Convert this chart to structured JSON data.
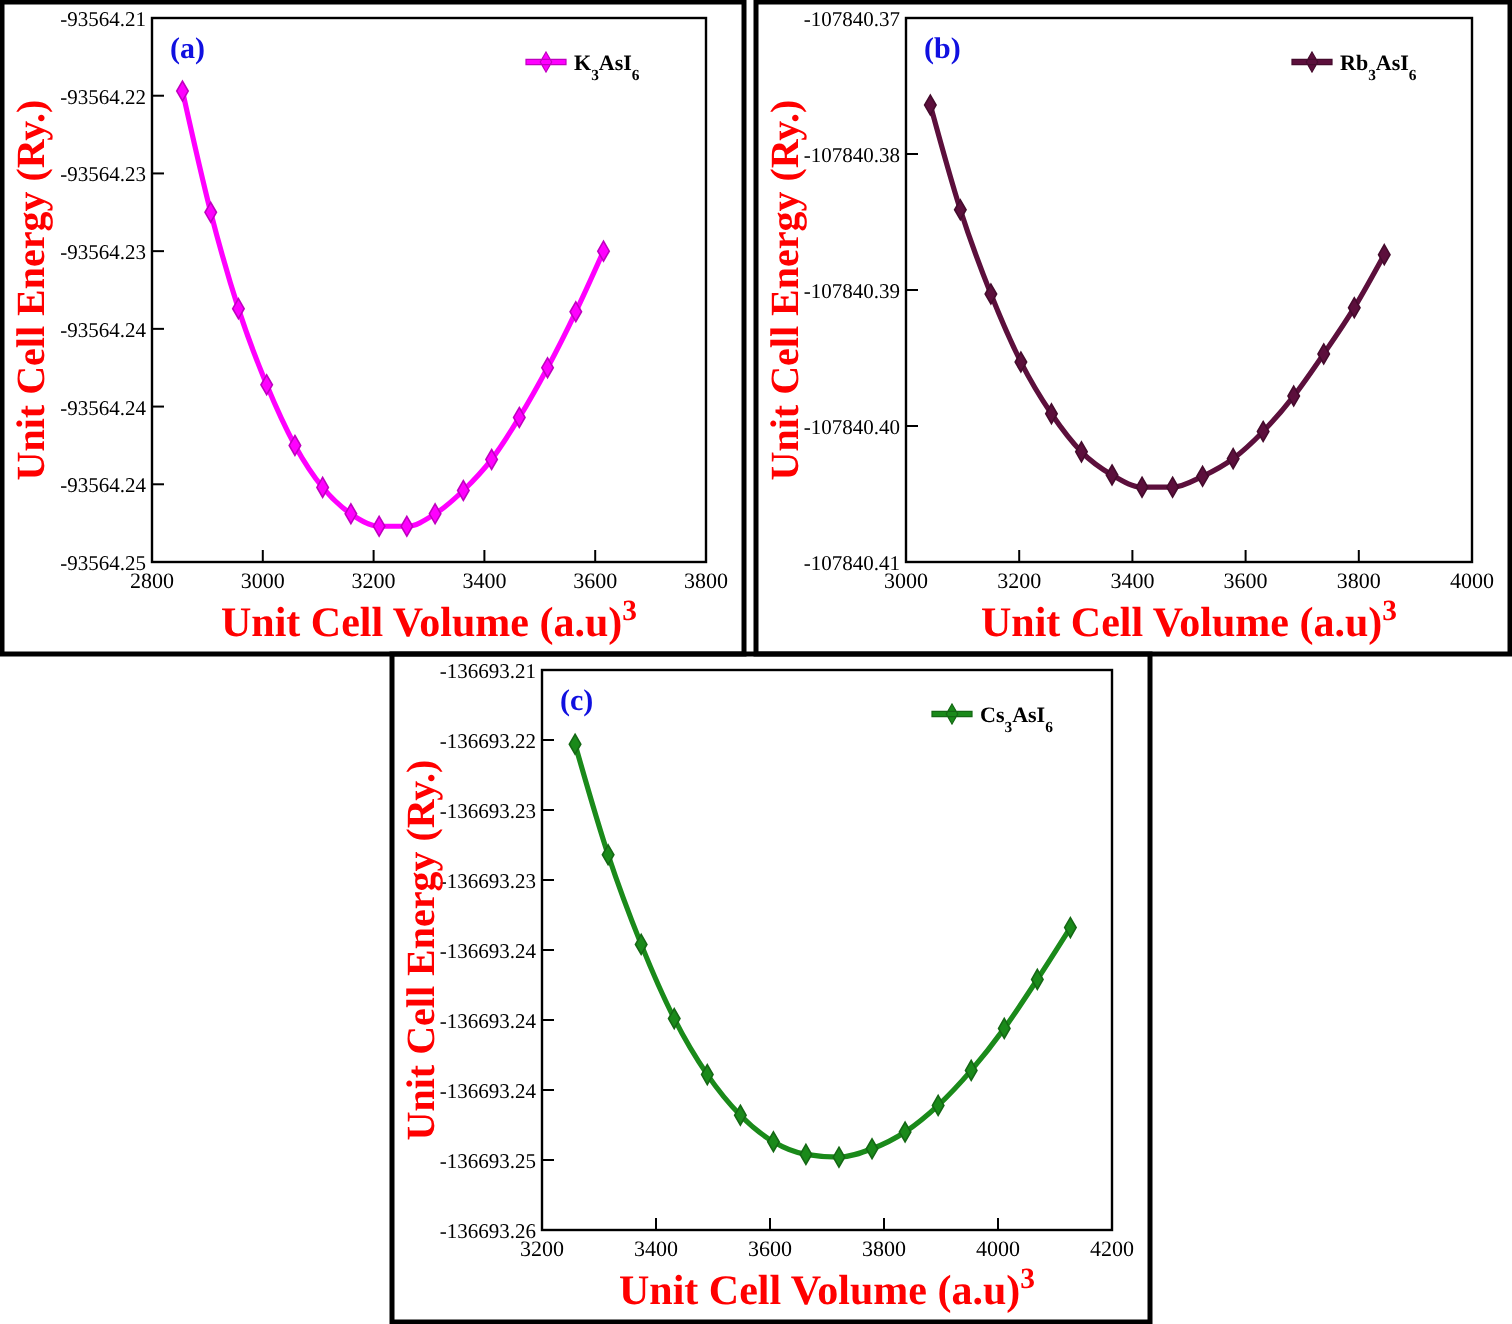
{
  "chart_data": [
    {
      "type": "line",
      "xlabel": "Unit Cell Volume (a.u)$^{3}$",
      "ylabel": "Unit Cell Energy (Ry.)",
      "annotations": [
        "(a)"
      ],
      "legend": "top right",
      "marker": "diamond",
      "x": [
        2855,
        2906,
        2956,
        3007,
        3058,
        3108,
        3159,
        3210,
        3260,
        3311,
        3362,
        3413,
        3463,
        3514,
        3565,
        3615
      ],
      "series": [
        {
          "name": "K$_{3}$AsI$_{6}$",
          "color": "#ff00ff",
          "values": [
            -93564.2197,
            -93564.2275,
            -93564.2337,
            -93564.2386,
            -93564.2425,
            -93564.2452,
            -93564.2469,
            -93564.2477,
            -93564.2477,
            -93564.2469,
            -93564.2454,
            -93564.2434,
            -93564.2407,
            -93564.2375,
            -93564.2339,
            -93564.23
          ]
        }
      ],
      "xlim": [
        2800,
        3800
      ],
      "xticks": [
        2800,
        3000,
        3200,
        3400,
        3600,
        3800
      ],
      "ylim": [
        -93564.25,
        -93564.215
      ],
      "yticks": [
        {
          "value": -93564.215,
          "label": "-93564.21"
        },
        {
          "value": -93564.22,
          "label": "-93564.22"
        },
        {
          "value": -93564.225,
          "label": "-93564.23"
        },
        {
          "value": -93564.23,
          "label": "-93564.23"
        },
        {
          "value": -93564.235,
          "label": "-93564.24"
        },
        {
          "value": -93564.24,
          "label": "-93564.24"
        },
        {
          "value": -93564.245,
          "label": "-93564.24"
        },
        {
          "value": -93564.25,
          "label": "-93564.25"
        }
      ]
    },
    {
      "type": "line",
      "xlabel": "Unit Cell Volume (a.u)$^{3}$",
      "ylabel": "Unit Cell Energy (Ry.)",
      "annotations": [
        "(b)"
      ],
      "legend": "top right",
      "marker": "diamond",
      "x": [
        3043,
        3096,
        3150,
        3203,
        3257,
        3310,
        3364,
        3417,
        3471,
        3524,
        3578,
        3631,
        3685,
        3738,
        3792,
        3845
      ],
      "series": [
        {
          "name": "Rb$_{3}$AsI$_{6}$",
          "color": "#5c0f3c",
          "values": [
            -107840.3764,
            -107840.3841,
            -107840.3903,
            -107840.3953,
            -107840.3991,
            -107840.4019,
            -107840.4036,
            -107840.4045,
            -107840.4045,
            -107840.4037,
            -107840.4024,
            -107840.4004,
            -107840.3978,
            -107840.3947,
            -107840.3913,
            -107840.3874
          ]
        }
      ],
      "xlim": [
        3000,
        4000
      ],
      "xticks": [
        3000,
        3200,
        3400,
        3600,
        3800,
        4000
      ],
      "ylim": [
        -107840.41,
        -107840.37
      ],
      "yticks": [
        {
          "value": -107840.37,
          "label": "-107840.37"
        },
        {
          "value": -107840.38,
          "label": "-107840.38"
        },
        {
          "value": -107840.39,
          "label": "-107840.39"
        },
        {
          "value": -107840.4,
          "label": "-107840.40"
        },
        {
          "value": -107840.41,
          "label": "-107840.41"
        }
      ]
    },
    {
      "type": "line",
      "xlabel": "Unit Cell Volume (a.u)$^{3}$",
      "ylabel": "Unit Cell Energy (Ry.)",
      "annotations": [
        "(c)"
      ],
      "legend": "top right",
      "marker": "diamond",
      "x": [
        3258,
        3316,
        3374,
        3432,
        3490,
        3548,
        3606,
        3663,
        3721,
        3779,
        3837,
        3895,
        3953,
        4011,
        4069,
        4127
      ],
      "series": [
        {
          "name": "Cs$_{3}$AsI$_{6}$",
          "color": "#1a8a1a",
          "values": [
            -136693.2203,
            -136693.2282,
            -136693.2346,
            -136693.2399,
            -136693.2439,
            -136693.2468,
            -136693.2487,
            -136693.2496,
            -136693.2498,
            -136693.2492,
            -136693.248,
            -136693.2461,
            -136693.2436,
            -136693.2406,
            -136693.2371,
            -136693.2334
          ]
        }
      ],
      "xlim": [
        3200,
        4200
      ],
      "xticks": [
        3200,
        3400,
        3600,
        3800,
        4000,
        4200
      ],
      "ylim": [
        -136693.255,
        -136693.215
      ],
      "yticks": [
        {
          "value": -136693.215,
          "label": "-136693.21"
        },
        {
          "value": -136693.22,
          "label": "-136693.22"
        },
        {
          "value": -136693.225,
          "label": "-136693.23"
        },
        {
          "value": -136693.23,
          "label": "-136693.23"
        },
        {
          "value": -136693.235,
          "label": "-136693.24"
        },
        {
          "value": -136693.24,
          "label": "-136693.24"
        },
        {
          "value": -136693.245,
          "label": "-136693.24"
        },
        {
          "value": -136693.25,
          "label": "-136693.25"
        },
        {
          "value": -136693.255,
          "label": "-136693.26"
        }
      ]
    }
  ]
}
